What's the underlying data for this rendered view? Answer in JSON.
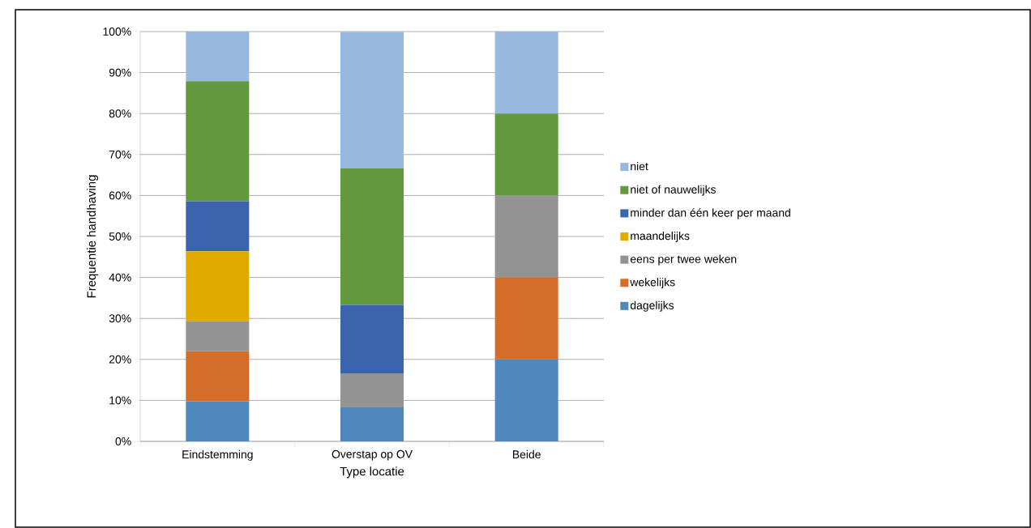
{
  "chart_data": {
    "type": "bar",
    "stacked": true,
    "xlabel": "Type locatie",
    "ylabel": "Frequentie handhaving",
    "categories": [
      "Eindstemming",
      "Overstap op OV",
      "Beide"
    ],
    "series": [
      {
        "name": "dagelijks",
        "color": "#4f88bc",
        "values": [
          9.8,
          8.3,
          20
        ]
      },
      {
        "name": "wekelijks",
        "color": "#d46d29",
        "values": [
          12.2,
          0,
          20
        ]
      },
      {
        "name": "eens per twee weken",
        "color": "#939393",
        "values": [
          7.3,
          8.3,
          20
        ]
      },
      {
        "name": "maandelijks",
        "color": "#e2a900",
        "values": [
          17.1,
          0,
          0
        ]
      },
      {
        "name": "minder dan één keer per maand",
        "color": "#3c63ad",
        "values": [
          12.2,
          16.7,
          0
        ]
      },
      {
        "name": "niet of nauwelijks",
        "color": "#62993e",
        "values": [
          29.3,
          33.3,
          20
        ]
      },
      {
        "name": "niet",
        "color": "#97b8df",
        "values": [
          12.2,
          33.3,
          20
        ]
      }
    ],
    "ylim": [
      0,
      100
    ],
    "yticks": [
      {
        "value": 0,
        "label": "0%"
      },
      {
        "value": 10,
        "label": "10%"
      },
      {
        "value": 20,
        "label": "20%"
      },
      {
        "value": 30,
        "label": "30%"
      },
      {
        "value": 40,
        "label": "40%"
      },
      {
        "value": 50,
        "label": "50%"
      },
      {
        "value": 60,
        "label": "60%"
      },
      {
        "value": 70,
        "label": "70%"
      },
      {
        "value": 80,
        "label": "80%"
      },
      {
        "value": 90,
        "label": "90%"
      },
      {
        "value": 100,
        "label": "100%"
      }
    ],
    "grid": "y",
    "legend": "right"
  }
}
